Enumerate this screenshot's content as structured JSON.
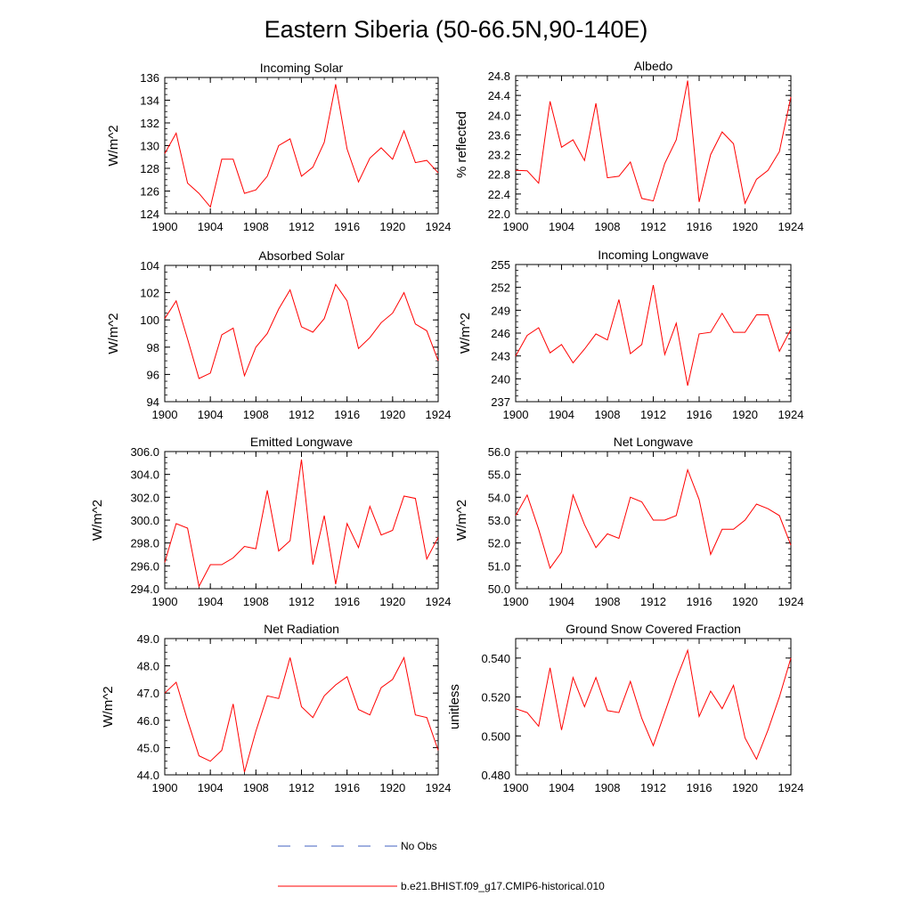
{
  "figure_title": "Eastern Siberia (50-66.5N,90-140E)",
  "legend": [
    {
      "label": "No Obs",
      "color": "#4060c0",
      "dash": true
    },
    {
      "label": "b.e21.BHIST.f09_g17.CMIP6-historical.010",
      "color": "#ff0000",
      "dash": false
    }
  ],
  "chart_data": [
    {
      "type": "line",
      "title": "Incoming Solar",
      "ylabel": "W/m^2",
      "x": [
        1900,
        1901,
        1902,
        1903,
        1904,
        1905,
        1906,
        1907,
        1908,
        1909,
        1910,
        1911,
        1912,
        1913,
        1914,
        1915,
        1916,
        1917,
        1918,
        1919,
        1920,
        1921,
        1922,
        1923,
        1924
      ],
      "values": [
        129.3,
        131.1,
        126.7,
        125.8,
        124.6,
        128.8,
        128.8,
        125.8,
        126.1,
        127.3,
        130.0,
        130.6,
        127.3,
        128.1,
        130.3,
        135.4,
        129.7,
        126.8,
        128.9,
        129.8,
        128.8,
        131.3,
        128.5,
        128.7,
        127.6
      ],
      "xlim": [
        1900,
        1924
      ],
      "ylim": [
        124,
        136
      ],
      "yticks": [
        "124",
        "126",
        "128",
        "130",
        "132",
        "134",
        "136"
      ],
      "xticks": [
        "1900",
        "1904",
        "1908",
        "1912",
        "1916",
        "1920",
        "1924"
      ],
      "series_color": "#ff0000"
    },
    {
      "type": "line",
      "title": "Albedo",
      "ylabel": "% reflected",
      "x": [
        1900,
        1901,
        1902,
        1903,
        1904,
        1905,
        1906,
        1907,
        1908,
        1909,
        1910,
        1911,
        1912,
        1913,
        1914,
        1915,
        1916,
        1917,
        1918,
        1919,
        1920,
        1921,
        1922,
        1923,
        1924
      ],
      "values": [
        22.88,
        22.87,
        22.62,
        24.28,
        23.35,
        23.5,
        23.08,
        24.24,
        22.73,
        22.76,
        23.05,
        22.31,
        22.26,
        23.02,
        23.5,
        24.7,
        22.24,
        23.2,
        23.66,
        23.42,
        22.21,
        22.7,
        22.88,
        23.26,
        24.37
      ],
      "xlim": [
        1900,
        1924
      ],
      "ylim": [
        22.0,
        24.8
      ],
      "yticks": [
        "22.0",
        "22.4",
        "22.8",
        "23.2",
        "23.6",
        "24.0",
        "24.4",
        "24.8"
      ],
      "xticks": [
        "1900",
        "1904",
        "1908",
        "1912",
        "1916",
        "1920",
        "1924"
      ],
      "series_color": "#ff0000"
    },
    {
      "type": "line",
      "title": "Absorbed Solar",
      "ylabel": "W/m^2",
      "x": [
        1900,
        1901,
        1902,
        1903,
        1904,
        1905,
        1906,
        1907,
        1908,
        1909,
        1910,
        1911,
        1912,
        1913,
        1914,
        1915,
        1916,
        1917,
        1918,
        1919,
        1920,
        1921,
        1922,
        1923,
        1924
      ],
      "values": [
        100.1,
        101.4,
        98.6,
        95.7,
        96.1,
        98.9,
        99.4,
        95.9,
        98.0,
        99.0,
        100.8,
        102.2,
        99.5,
        99.1,
        100.1,
        102.6,
        101.4,
        97.9,
        98.7,
        99.8,
        100.5,
        102.0,
        99.7,
        99.2,
        97.0
      ],
      "xlim": [
        1900,
        1924
      ],
      "ylim": [
        94,
        104
      ],
      "yticks": [
        "94",
        "96",
        "98",
        "100",
        "102",
        "104"
      ],
      "xticks": [
        "1900",
        "1904",
        "1908",
        "1912",
        "1916",
        "1920",
        "1924"
      ],
      "series_color": "#ff0000"
    },
    {
      "type": "line",
      "title": "Incoming Longwave",
      "ylabel": "W/m^2",
      "x": [
        1900,
        1901,
        1902,
        1903,
        1904,
        1905,
        1906,
        1907,
        1908,
        1909,
        1910,
        1911,
        1912,
        1913,
        1914,
        1915,
        1916,
        1917,
        1918,
        1919,
        1920,
        1921,
        1922,
        1923,
        1924
      ],
      "values": [
        243.0,
        245.7,
        246.7,
        243.4,
        244.5,
        242.1,
        243.9,
        245.9,
        245.1,
        250.4,
        243.3,
        244.5,
        252.3,
        243.2,
        247.3,
        239.1,
        245.9,
        246.1,
        248.6,
        246.1,
        246.1,
        248.4,
        248.4,
        243.6,
        246.5
      ],
      "xlim": [
        1900,
        1924
      ],
      "ylim": [
        237,
        255
      ],
      "yticks": [
        "237",
        "240",
        "243",
        "246",
        "249",
        "252",
        "255"
      ],
      "xticks": [
        "1900",
        "1904",
        "1908",
        "1912",
        "1916",
        "1920",
        "1924"
      ],
      "series_color": "#ff0000"
    },
    {
      "type": "line",
      "title": "Emitted Longwave",
      "ylabel": "W/m^2",
      "x": [
        1900,
        1901,
        1902,
        1903,
        1904,
        1905,
        1906,
        1907,
        1908,
        1909,
        1910,
        1911,
        1912,
        1913,
        1914,
        1915,
        1916,
        1917,
        1918,
        1919,
        1920,
        1921,
        1922,
        1923,
        1924
      ],
      "values": [
        296.3,
        299.7,
        299.3,
        294.2,
        296.1,
        296.1,
        296.7,
        297.7,
        297.5,
        302.6,
        297.3,
        298.2,
        305.3,
        296.1,
        300.4,
        294.4,
        299.7,
        297.6,
        301.2,
        298.7,
        299.1,
        302.1,
        301.9,
        296.6,
        298.5
      ],
      "xlim": [
        1900,
        1924
      ],
      "ylim": [
        294.0,
        306.0
      ],
      "yticks": [
        "294.0",
        "296.0",
        "298.0",
        "300.0",
        "302.0",
        "304.0",
        "306.0"
      ],
      "xticks": [
        "1900",
        "1904",
        "1908",
        "1912",
        "1916",
        "1920",
        "1924"
      ],
      "series_color": "#ff0000"
    },
    {
      "type": "line",
      "title": "Net Longwave",
      "ylabel": "W/m^2",
      "x": [
        1900,
        1901,
        1902,
        1903,
        1904,
        1905,
        1906,
        1907,
        1908,
        1909,
        1910,
        1911,
        1912,
        1913,
        1914,
        1915,
        1916,
        1917,
        1918,
        1919,
        1920,
        1921,
        1922,
        1923,
        1924
      ],
      "values": [
        53.2,
        54.1,
        52.6,
        50.9,
        51.6,
        54.1,
        52.8,
        51.8,
        52.4,
        52.2,
        54.0,
        53.8,
        53.0,
        53.0,
        53.2,
        55.2,
        53.9,
        51.5,
        52.6,
        52.6,
        53.0,
        53.7,
        53.5,
        53.2,
        51.9
      ],
      "xlim": [
        1900,
        1924
      ],
      "ylim": [
        50.0,
        56.0
      ],
      "yticks": [
        "50.0",
        "51.0",
        "52.0",
        "53.0",
        "54.0",
        "55.0",
        "56.0"
      ],
      "xticks": [
        "1900",
        "1904",
        "1908",
        "1912",
        "1916",
        "1920",
        "1924"
      ],
      "series_color": "#ff0000"
    },
    {
      "type": "line",
      "title": "Net Radiation",
      "ylabel": "W/m^2",
      "x": [
        1900,
        1901,
        1902,
        1903,
        1904,
        1905,
        1906,
        1907,
        1908,
        1909,
        1910,
        1911,
        1912,
        1913,
        1914,
        1915,
        1916,
        1917,
        1918,
        1919,
        1920,
        1921,
        1922,
        1923,
        1924
      ],
      "values": [
        47.0,
        47.4,
        46.0,
        44.7,
        44.5,
        44.9,
        46.6,
        44.1,
        45.6,
        46.9,
        46.8,
        48.3,
        46.5,
        46.1,
        46.9,
        47.3,
        47.6,
        46.4,
        46.2,
        47.2,
        47.5,
        48.3,
        46.2,
        46.1,
        44.9
      ],
      "xlim": [
        1900,
        1924
      ],
      "ylim": [
        44.0,
        49.0
      ],
      "yticks": [
        "44.0",
        "45.0",
        "46.0",
        "47.0",
        "48.0",
        "49.0"
      ],
      "xticks": [
        "1900",
        "1904",
        "1908",
        "1912",
        "1916",
        "1920",
        "1924"
      ],
      "series_color": "#ff0000"
    },
    {
      "type": "line",
      "title": "Ground Snow Covered Fraction",
      "ylabel": "unitless",
      "x": [
        1900,
        1901,
        1902,
        1903,
        1904,
        1905,
        1906,
        1907,
        1908,
        1909,
        1910,
        1911,
        1912,
        1913,
        1914,
        1915,
        1916,
        1917,
        1918,
        1919,
        1920,
        1921,
        1922,
        1923,
        1924
      ],
      "values": [
        0.514,
        0.512,
        0.505,
        0.535,
        0.503,
        0.53,
        0.515,
        0.53,
        0.513,
        0.512,
        0.528,
        0.509,
        0.495,
        0.512,
        0.529,
        0.544,
        0.51,
        0.523,
        0.514,
        0.526,
        0.499,
        0.488,
        0.503,
        0.52,
        0.54
      ],
      "xlim": [
        1900,
        1924
      ],
      "ylim": [
        0.48,
        0.55
      ],
      "yticks": [
        "0.480",
        "0.500",
        "0.520",
        "0.540"
      ],
      "xticks": [
        "1900",
        "1904",
        "1908",
        "1912",
        "1916",
        "1920",
        "1924"
      ],
      "series_color": "#ff0000"
    }
  ]
}
